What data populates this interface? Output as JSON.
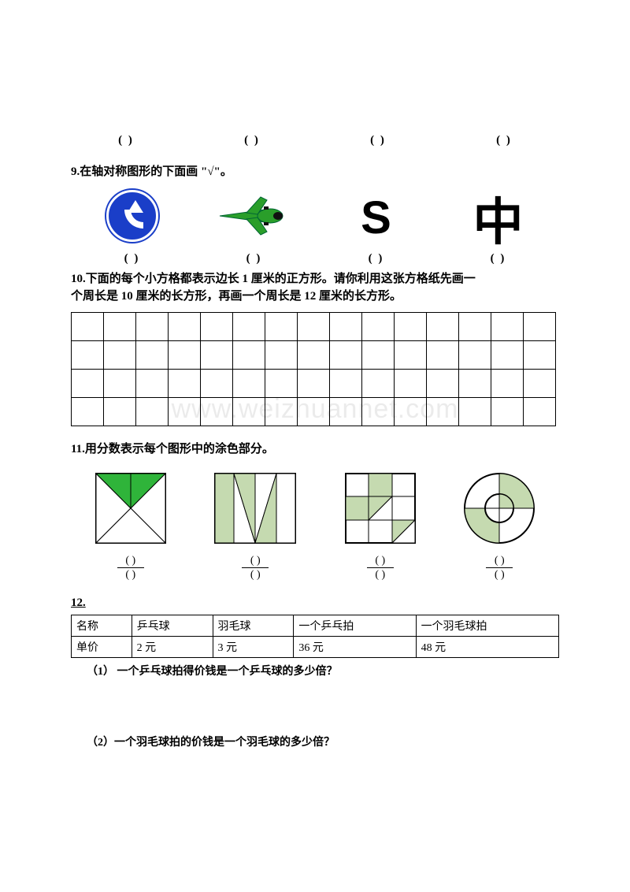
{
  "paren": "(         )",
  "q9": "9.在轴对称图形的下面画 \"√\"。",
  "sym": {
    "s": "S",
    "zhong": "中"
  },
  "q10a": "10.下面的每个小方格都表示边长 1 厘米的正方形。请你利用这张方格纸先画一",
  "q10b": "个周长是 10 厘米的长方形，再画一个周长是 12 厘米的长方形。",
  "grid": {
    "rows": 4,
    "cols": 15
  },
  "watermark": "www.weizhuannet.com",
  "q11": "11.用分数表示每个图形中的涂色部分。",
  "fracLabel": {
    "num": "(   )",
    "den": "(   )"
  },
  "q12": "12.",
  "table": {
    "headers": [
      "名称",
      "乒乓球",
      "羽毛球",
      "一个乒乓拍",
      "一个羽毛球拍"
    ],
    "row": [
      "单价",
      "2 元",
      "3 元",
      "36 元",
      "48 元"
    ]
  },
  "q12_1": "（1）  一个乒乓球拍得价钱是一个乒乓球的多少倍？",
  "q12_2": "（2）一个羽毛球拍的价钱是一个羽毛球的多少倍？",
  "colors": {
    "green": "#2fb43a",
    "lightgreen": "#c5dab0",
    "blue": "#1a3ec8",
    "jetgreen": "#2a9e2a"
  }
}
